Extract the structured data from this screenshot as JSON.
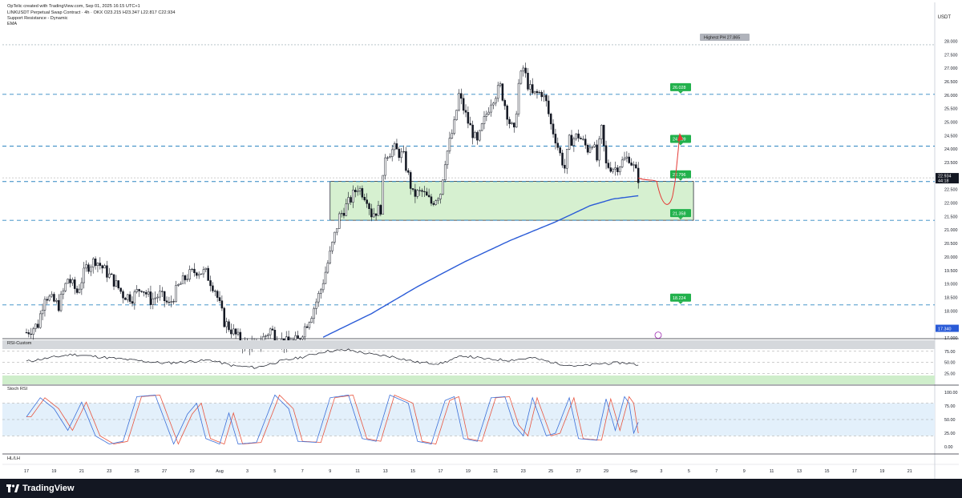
{
  "header": {
    "line1": "OpTelic created with TradingView.com, Sep 01, 2025 16:15 UTC+1",
    "line2": "LINKUSDT Perpetual Swap Contract · 4h · OKX  O23.215  H23.347  L22.817  C22.934",
    "line3": "Support Resistance - Dynamic",
    "line4": "EMA",
    "currency": "USDT"
  },
  "panes": {
    "rsi_title": "RSI-Custom",
    "stoch_title": "Stoch RSI",
    "hl_title": "HL/LH"
  },
  "footer": {
    "brand": "TradingView"
  },
  "colors": {
    "up": "#ffffff",
    "down": "#131722",
    "ema": "#2a5bd7",
    "level": "#2e86c1",
    "zone": "#d6f0d0",
    "label_green": "#22b14c",
    "path": "#e53935",
    "rsi_line": "#131722",
    "stoch_k": "#3b6fd8",
    "stoch_d": "#e8553f",
    "stoch_bg": "#e3f0fb"
  },
  "chart_data": {
    "type": "candlestick",
    "symbol": "LINKUSDT",
    "timeframe": "4h",
    "ylim": [
      17.0,
      28.25
    ],
    "y_ticks": [
      "28.000",
      "27.500",
      "27.000",
      "26.500",
      "26.000",
      "25.500",
      "25.000",
      "24.500",
      "24.000",
      "23.500",
      "23.000",
      "22.500",
      "22.000",
      "21.500",
      "21.000",
      "20.500",
      "20.000",
      "19.500",
      "19.000",
      "18.500",
      "18.000",
      "17.000"
    ],
    "x_ticks": [
      "17",
      "19",
      "21",
      "23",
      "25",
      "27",
      "29",
      "Aug",
      "3",
      "5",
      "7",
      "9",
      "11",
      "13",
      "15",
      "17",
      "19",
      "21",
      "23",
      "25",
      "27",
      "29",
      "Sep",
      "3",
      "5",
      "7",
      "9",
      "11",
      "13",
      "15",
      "17",
      "19",
      "21"
    ],
    "x_tick_index": [
      0,
      12,
      24,
      36,
      48,
      60,
      72,
      84,
      96,
      108,
      120,
      132,
      144,
      156,
      168,
      180,
      192,
      204,
      216,
      228,
      240,
      252,
      264,
      276,
      288,
      300,
      312,
      324,
      336,
      348,
      360,
      372,
      384
    ],
    "last_candle_index": 266,
    "closes_anchor": [
      [
        0,
        17.2
      ],
      [
        5,
        17.5
      ],
      [
        8,
        18.6
      ],
      [
        14,
        18.2
      ],
      [
        18,
        19.2
      ],
      [
        22,
        18.7
      ],
      [
        26,
        19.6
      ],
      [
        30,
        19.9
      ],
      [
        34,
        19.5
      ],
      [
        38,
        19.1
      ],
      [
        42,
        18.6
      ],
      [
        46,
        18.5
      ],
      [
        50,
        18.9
      ],
      [
        54,
        18.4
      ],
      [
        58,
        18.6
      ],
      [
        62,
        18.2
      ],
      [
        66,
        18.9
      ],
      [
        70,
        19.3
      ],
      [
        74,
        19.5
      ],
      [
        78,
        19.4
      ],
      [
        82,
        18.8
      ],
      [
        86,
        17.6
      ],
      [
        90,
        17.2
      ],
      [
        94,
        16.8
      ],
      [
        100,
        16.7
      ],
      [
        106,
        17.3
      ],
      [
        112,
        16.8
      ],
      [
        118,
        16.9
      ],
      [
        124,
        17.9
      ],
      [
        128,
        18.8
      ],
      [
        132,
        20.1
      ],
      [
        136,
        21.5
      ],
      [
        140,
        22.0
      ],
      [
        144,
        22.6
      ],
      [
        148,
        22.2
      ],
      [
        150,
        21.6
      ],
      [
        154,
        21.8
      ],
      [
        156,
        23.8
      ],
      [
        160,
        24.0
      ],
      [
        164,
        23.7
      ],
      [
        168,
        22.3
      ],
      [
        172,
        22.4
      ],
      [
        176,
        22.0
      ],
      [
        180,
        22.4
      ],
      [
        182,
        23.6
      ],
      [
        186,
        24.9
      ],
      [
        188,
        26.0
      ],
      [
        192,
        25.0
      ],
      [
        196,
        24.2
      ],
      [
        198,
        24.8
      ],
      [
        202,
        25.8
      ],
      [
        206,
        26.3
      ],
      [
        210,
        25.0
      ],
      [
        212,
        24.6
      ],
      [
        214,
        26.4
      ],
      [
        216,
        27.0
      ],
      [
        218,
        26.4
      ],
      [
        220,
        26.0
      ],
      [
        224,
        26.1
      ],
      [
        226,
        25.7
      ],
      [
        228,
        24.9
      ],
      [
        230,
        24.4
      ],
      [
        232,
        23.8
      ],
      [
        234,
        23.3
      ],
      [
        236,
        24.3
      ],
      [
        240,
        24.5
      ],
      [
        244,
        24.0
      ],
      [
        246,
        24.3
      ],
      [
        248,
        23.6
      ],
      [
        250,
        24.7
      ],
      [
        252,
        23.4
      ],
      [
        256,
        23.3
      ],
      [
        260,
        23.6
      ],
      [
        262,
        23.7
      ],
      [
        266,
        22.93
      ]
    ],
    "ema": [
      [
        0,
        14.0
      ],
      [
        126,
        16.9
      ],
      [
        150,
        17.9
      ],
      [
        170,
        18.9
      ],
      [
        190,
        19.8
      ],
      [
        210,
        20.6
      ],
      [
        230,
        21.3
      ],
      [
        245,
        21.9
      ],
      [
        255,
        22.15
      ],
      [
        266,
        22.27
      ]
    ],
    "levels": [
      {
        "name": "Highest PH",
        "value": 27.865,
        "label": "Highest PH 27.865",
        "style": "dotted"
      },
      {
        "value": 26.028,
        "label": "26.028"
      },
      {
        "value": 24.109,
        "label": "24.109"
      },
      {
        "value": 22.796,
        "label": "22.796"
      },
      {
        "value": 21.358,
        "label": "21.358"
      },
      {
        "value": 18.224,
        "label": "18.224"
      }
    ],
    "zone": {
      "low": 21.36,
      "high": 22.8,
      "x_start": 132,
      "x_end": 290
    },
    "price_tags": [
      {
        "value": "22.934",
        "sub": "44:18",
        "bg": "#131722"
      },
      {
        "value": "17.340",
        "bg": "#2a5bd7"
      }
    ],
    "rsi": {
      "ylim": [
        0,
        100
      ],
      "y_ticks": [
        "75.00",
        "50.00",
        "25.00"
      ],
      "bands": [
        [
          80,
          100
        ],
        [
          0,
          20
        ]
      ],
      "anchors": [
        [
          0,
          52
        ],
        [
          20,
          68
        ],
        [
          40,
          58
        ],
        [
          60,
          48
        ],
        [
          80,
          55
        ],
        [
          90,
          42
        ],
        [
          100,
          38
        ],
        [
          110,
          52
        ],
        [
          120,
          62
        ],
        [
          130,
          75
        ],
        [
          140,
          78
        ],
        [
          150,
          68
        ],
        [
          160,
          62
        ],
        [
          170,
          50
        ],
        [
          180,
          47
        ],
        [
          190,
          65
        ],
        [
          200,
          57
        ],
        [
          210,
          55
        ],
        [
          220,
          60
        ],
        [
          230,
          48
        ],
        [
          240,
          41
        ],
        [
          250,
          47
        ],
        [
          260,
          49
        ],
        [
          266,
          44
        ]
      ]
    },
    "stoch": {
      "ylim": [
        0,
        100
      ],
      "y_ticks": [
        "100.00",
        "75.00",
        "50.00",
        "25.00",
        "0.00"
      ],
      "k_anchors": [
        [
          0,
          55
        ],
        [
          6,
          90
        ],
        [
          12,
          70
        ],
        [
          18,
          30
        ],
        [
          24,
          82
        ],
        [
          30,
          20
        ],
        [
          36,
          5
        ],
        [
          42,
          10
        ],
        [
          48,
          92
        ],
        [
          56,
          95
        ],
        [
          60,
          50
        ],
        [
          64,
          5
        ],
        [
          70,
          60
        ],
        [
          74,
          80
        ],
        [
          78,
          15
        ],
        [
          84,
          5
        ],
        [
          88,
          62
        ],
        [
          92,
          5
        ],
        [
          100,
          8
        ],
        [
          108,
          95
        ],
        [
          114,
          70
        ],
        [
          118,
          10
        ],
        [
          126,
          8
        ],
        [
          132,
          90
        ],
        [
          140,
          95
        ],
        [
          146,
          15
        ],
        [
          152,
          10
        ],
        [
          158,
          95
        ],
        [
          166,
          80
        ],
        [
          170,
          10
        ],
        [
          176,
          5
        ],
        [
          182,
          85
        ],
        [
          186,
          92
        ],
        [
          190,
          15
        ],
        [
          196,
          10
        ],
        [
          202,
          90
        ],
        [
          208,
          92
        ],
        [
          212,
          40
        ],
        [
          216,
          20
        ],
        [
          220,
          90
        ],
        [
          226,
          20
        ],
        [
          230,
          25
        ],
        [
          236,
          90
        ],
        [
          240,
          15
        ],
        [
          248,
          12
        ],
        [
          252,
          88
        ],
        [
          256,
          30
        ],
        [
          260,
          92
        ],
        [
          262,
          80
        ],
        [
          264,
          25
        ],
        [
          266,
          45
        ]
      ]
    }
  }
}
